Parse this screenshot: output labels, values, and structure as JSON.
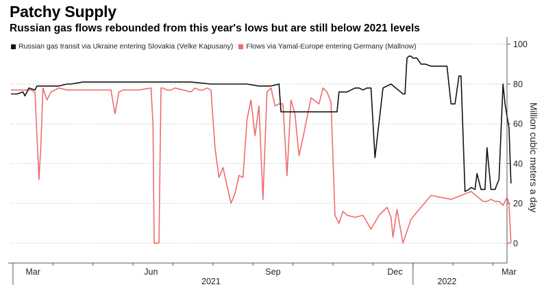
{
  "header": {
    "title": "Patchy Supply",
    "subtitle": "Russian gas flows rebounded from this year's lows but are still below 2021 levels"
  },
  "colors": {
    "series1": "#111111",
    "series2": "#ef6b6b",
    "axis": "#555555",
    "grid": "#aaaaaa"
  },
  "chart_data": {
    "type": "line",
    "title": "Patchy Supply",
    "subtitle": "Russian gas flows rebounded from this year's lows but are still below 2021 levels",
    "xlabel": "",
    "ylabel": "Million cubic meters a day",
    "ylim": [
      -10,
      103
    ],
    "yticks": [
      0,
      20,
      40,
      60,
      80,
      100
    ],
    "xlim": [
      0,
      12.4
    ],
    "xticks": [
      {
        "value": 0.55,
        "label": "Mar"
      },
      {
        "value": 3.5,
        "label": "Jun"
      },
      {
        "value": 6.55,
        "label": "Sep"
      },
      {
        "value": 9.6,
        "label": "Dec"
      },
      {
        "value": 12.45,
        "label": "Mar"
      }
    ],
    "year_labels": [
      {
        "value": 5.0,
        "label": "2021"
      },
      {
        "value": 10.9,
        "label": "2022"
      }
    ],
    "series": [
      {
        "name": "Russian gas transit via Ukraine entering Slovakia (Velke Kapusany)",
        "x": [
          0,
          0.15,
          0.3,
          0.35,
          0.45,
          0.6,
          0.65,
          0.8,
          1.0,
          1.2,
          1.4,
          1.5,
          1.8,
          2.5,
          3,
          3.5,
          4,
          4.5,
          5,
          5.5,
          5.8,
          5.9,
          6.2,
          6.5,
          6.7,
          6.75,
          6.9,
          6.95,
          7.2,
          7.3,
          7.5,
          7.8,
          8.0,
          8.1,
          8.15,
          8.2,
          8.4,
          8.6,
          8.7,
          8.8,
          8.9,
          9.0,
          9.1,
          9.3,
          9.5,
          9.8,
          9.85,
          9.9,
          9.95,
          10.0,
          10.05,
          10.15,
          10.25,
          10.35,
          10.5,
          10.55,
          10.65,
          10.75,
          10.9,
          11.0,
          11.1,
          11.2,
          11.25,
          11.35,
          11.45,
          11.5,
          11.6,
          11.65,
          11.75,
          11.85,
          11.9,
          12.0,
          12.1,
          12.2,
          12.3,
          12.35,
          12.45,
          12.5
        ],
        "values": [
          75,
          75,
          76,
          74,
          78,
          77,
          79,
          79,
          79,
          79,
          80,
          80,
          81,
          81,
          81,
          81,
          81,
          81,
          80,
          80,
          80,
          80,
          79,
          79,
          80,
          66,
          66,
          66,
          66,
          66,
          66,
          66,
          66,
          66,
          66,
          76,
          76,
          78,
          78,
          77,
          78,
          78,
          43,
          78,
          80,
          75,
          75,
          93,
          94,
          94,
          93,
          93,
          90,
          90,
          89,
          89,
          89,
          89,
          89,
          70,
          70,
          84,
          84,
          26,
          27,
          28,
          27,
          35,
          27,
          27,
          48,
          27,
          27,
          32,
          80,
          70,
          58,
          30
        ]
      },
      {
        "name": "Flows via Yamal-Europe entering Germany (Mallnow)",
        "x": [
          0,
          0.5,
          0.6,
          0.7,
          0.75,
          0.8,
          0.9,
          1.0,
          1.2,
          1.4,
          2.5,
          2.6,
          2.7,
          2.8,
          3.2,
          3.5,
          3.55,
          3.58,
          3.7,
          3.75,
          3.8,
          3.9,
          4.0,
          4.1,
          4.3,
          4.5,
          4.6,
          4.7,
          4.8,
          4.9,
          5.0,
          5.1,
          5.2,
          5.3,
          5.5,
          5.6,
          5.7,
          5.8,
          5.9,
          6.0,
          6.1,
          6.2,
          6.3,
          6.4,
          6.5,
          6.6,
          6.7,
          6.8,
          6.9,
          7.0,
          7.1,
          7.2,
          7.3,
          7.5,
          7.7,
          7.8,
          7.9,
          8.0,
          8.1,
          8.2,
          8.3,
          8.4,
          8.6,
          8.8,
          9.0,
          9.2,
          9.4,
          9.5,
          9.55,
          9.65,
          9.8,
          10.0,
          10.5,
          11.0,
          11.5,
          11.8,
          11.85,
          11.9,
          12.0,
          12.1,
          12.2,
          12.3,
          12.4,
          12.45,
          12.5
        ],
        "values": [
          77,
          77,
          76,
          32,
          50,
          78,
          72,
          76,
          78,
          77,
          77,
          65,
          76,
          77,
          77,
          78,
          60,
          0,
          0,
          78,
          78,
          77,
          77,
          78,
          77,
          76,
          78,
          77,
          77,
          78,
          77,
          48,
          33,
          38,
          20,
          25,
          34,
          33,
          62,
          72,
          54,
          69,
          22,
          76,
          78,
          69,
          70,
          70,
          34,
          72,
          65,
          44,
          53,
          73,
          70,
          78,
          76,
          71,
          14,
          10,
          16,
          14,
          13,
          14,
          7,
          14,
          18,
          13,
          3,
          17,
          0,
          12,
          24,
          22,
          26,
          21,
          21,
          21,
          22,
          21,
          21,
          19,
          23,
          20,
          0
        ]
      }
    ]
  }
}
